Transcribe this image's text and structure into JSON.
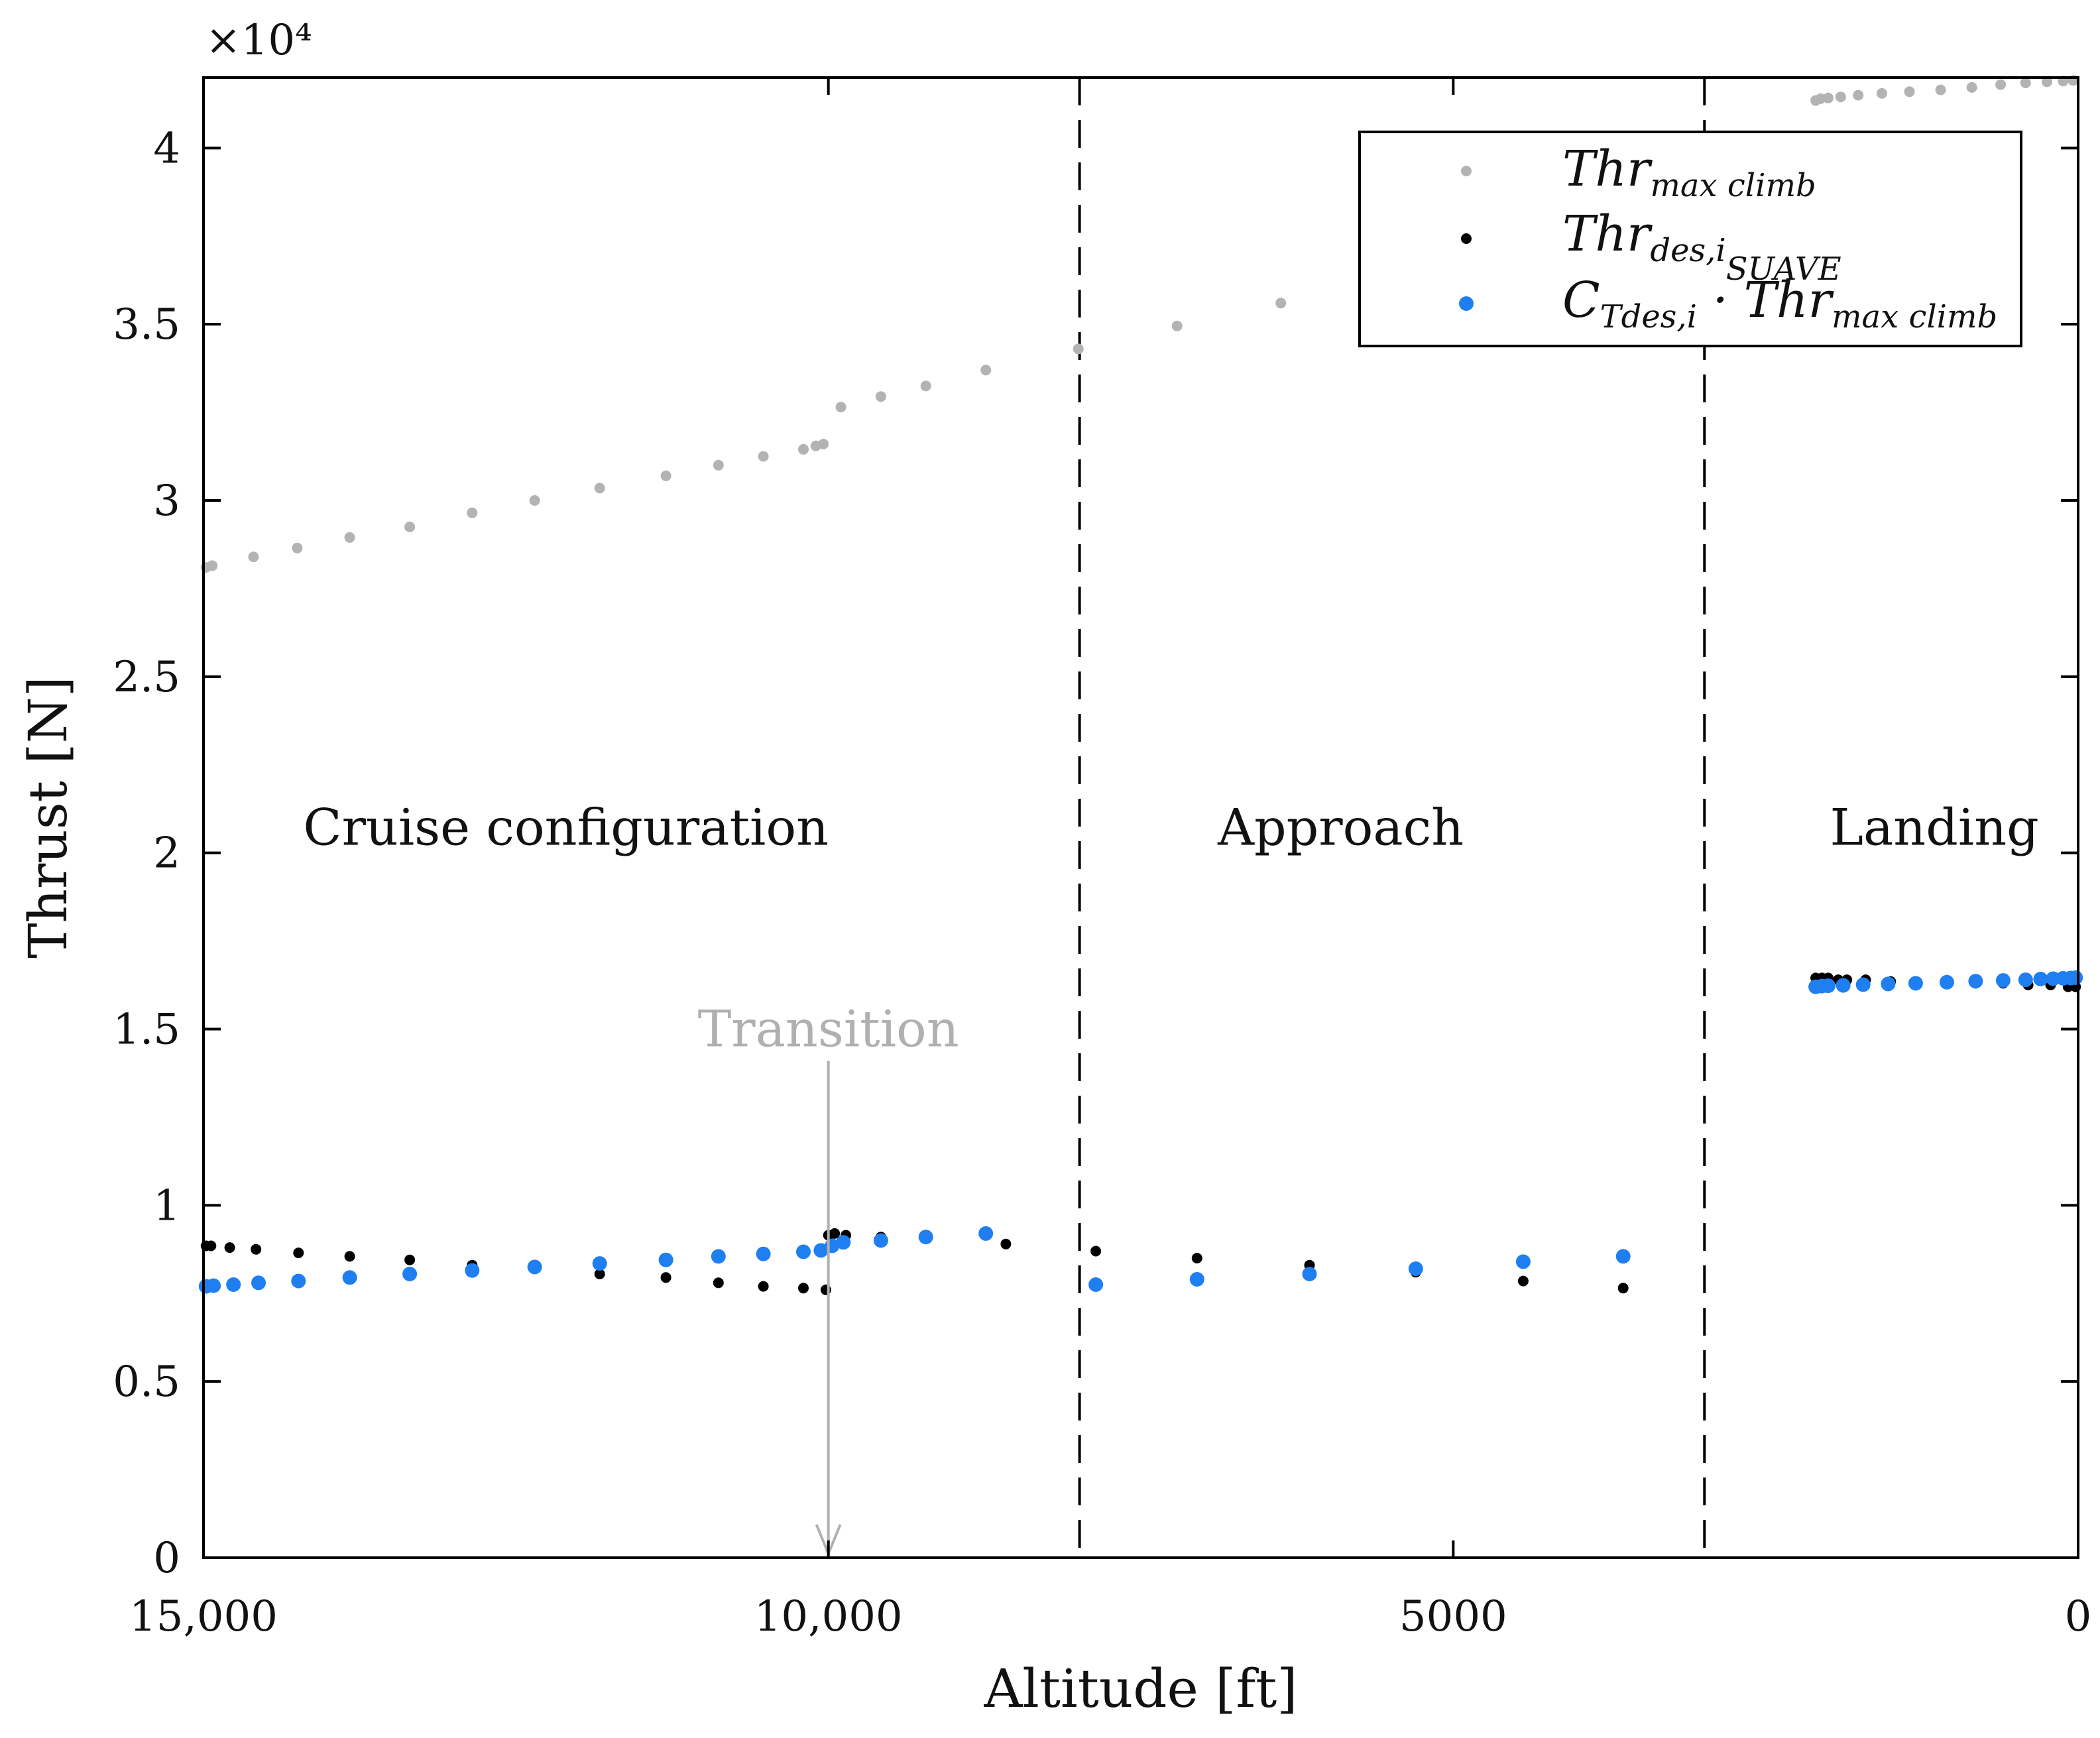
{
  "chart_data": {
    "type": "scatter",
    "xlabel": "Altitude [ft]",
    "ylabel": "Thrust [N]",
    "x_reversed": true,
    "xlim": [
      0,
      15000
    ],
    "ylim": [
      0,
      42000
    ],
    "y_exponent_label": "×10⁴",
    "x_ticks": [
      15000,
      10000,
      5000,
      0
    ],
    "x_tick_labels": [
      "15,000",
      "10,000",
      "5000",
      "0"
    ],
    "y_ticks": [
      0,
      5000,
      10000,
      15000,
      20000,
      25000,
      30000,
      35000,
      40000
    ],
    "y_tick_labels": [
      "0",
      "0.5",
      "1",
      "1.5",
      "2",
      "2.5",
      "3",
      "3.5",
      "4"
    ],
    "boundaries": [
      7990,
      2990
    ],
    "regions": [
      {
        "label": "Cruise configuration",
        "x": 12100,
        "y": 20000
      },
      {
        "label": "Approach",
        "x": 5900,
        "y": 20000
      },
      {
        "label": "Landing",
        "x": 1150,
        "y": 20000
      }
    ],
    "transition": {
      "label": "Transition",
      "x": 10000,
      "y_text": 15000,
      "y_from": 14100,
      "y_to": 0
    },
    "legend": {
      "position": "top-right",
      "items": [
        {
          "base": "Thr",
          "sub": "max climb",
          "series": "max_climb"
        },
        {
          "base": "Thr",
          "sub": "des,i",
          "subsub": "SUAVE",
          "series": "suave"
        },
        {
          "base": "C",
          "sub": "Tdes,i",
          "mid": " · Thr",
          "sub2": "max climb",
          "series": "ct_product"
        }
      ]
    },
    "series": [
      {
        "name": "Thr_max_climb",
        "key": "max_climb",
        "color": "#b3b3b3",
        "marker_size": "small",
        "x": [
          14980,
          14930,
          14600,
          14250,
          13830,
          13350,
          12850,
          12350,
          11830,
          11300,
          10880,
          10520,
          10200,
          10100,
          10040,
          9900,
          9580,
          9220,
          8740,
          8000,
          7210,
          6380,
          2100,
          2060,
          2000,
          1900,
          1760,
          1570,
          1350,
          1100,
          850,
          620,
          420,
          250,
          120,
          40
        ],
        "y": [
          28100,
          28150,
          28400,
          28650,
          28950,
          29250,
          29650,
          30000,
          30350,
          30700,
          31000,
          31250,
          31450,
          31550,
          31600,
          32650,
          32950,
          33250,
          33700,
          34300,
          34950,
          35600,
          41350,
          41400,
          41420,
          41450,
          41500,
          41550,
          41600,
          41650,
          41720,
          41800,
          41850,
          41880,
          41900,
          41920
        ]
      },
      {
        "name": "Thr_des,i_SUAVE",
        "key": "suave",
        "color": "#000000",
        "marker_size": "small",
        "x": [
          14980,
          14940,
          14790,
          14580,
          14240,
          13830,
          13350,
          12850,
          12350,
          11830,
          11300,
          10880,
          10520,
          10200,
          10020,
          10000,
          9950,
          9860,
          9580,
          9220,
          8580,
          7860,
          7050,
          6150,
          5300,
          4440,
          3640,
          2100,
          2050,
          2000,
          1920,
          1850,
          1700,
          1500,
          1300,
          1050,
          820,
          600,
          400,
          220,
          80,
          20
        ],
        "y": [
          8850,
          8850,
          8800,
          8750,
          8650,
          8550,
          8450,
          8300,
          8200,
          8050,
          7950,
          7800,
          7700,
          7650,
          7600,
          9150,
          9200,
          9150,
          9100,
          9050,
          8900,
          8700,
          8500,
          8300,
          8100,
          7850,
          7650,
          16450,
          16450,
          16450,
          16400,
          16400,
          16400,
          16350,
          16350,
          16350,
          16300,
          16300,
          16250,
          16250,
          16200,
          16200
        ]
      },
      {
        "name": "C_Tdes,i · Thr_max_climb",
        "key": "ct_product",
        "color": "#1f7ff0",
        "marker_size": "large",
        "x": [
          14980,
          14920,
          14760,
          14560,
          14240,
          13830,
          13350,
          12850,
          12350,
          11830,
          11300,
          10880,
          10520,
          10200,
          10060,
          9970,
          9880,
          9580,
          9220,
          8740,
          7860,
          7050,
          6150,
          5300,
          4440,
          3640,
          2100,
          2050,
          2000,
          1880,
          1720,
          1520,
          1300,
          1050,
          820,
          600,
          420,
          300,
          200,
          120,
          60,
          20
        ],
        "y": [
          7700,
          7720,
          7750,
          7800,
          7850,
          7950,
          8050,
          8150,
          8250,
          8350,
          8450,
          8550,
          8620,
          8680,
          8720,
          8850,
          8950,
          9000,
          9100,
          9200,
          7750,
          7900,
          8050,
          8200,
          8400,
          8550,
          16200,
          16220,
          16230,
          16240,
          16260,
          16280,
          16300,
          16330,
          16360,
          16380,
          16400,
          16420,
          16430,
          16440,
          16450,
          16460
        ]
      }
    ]
  }
}
